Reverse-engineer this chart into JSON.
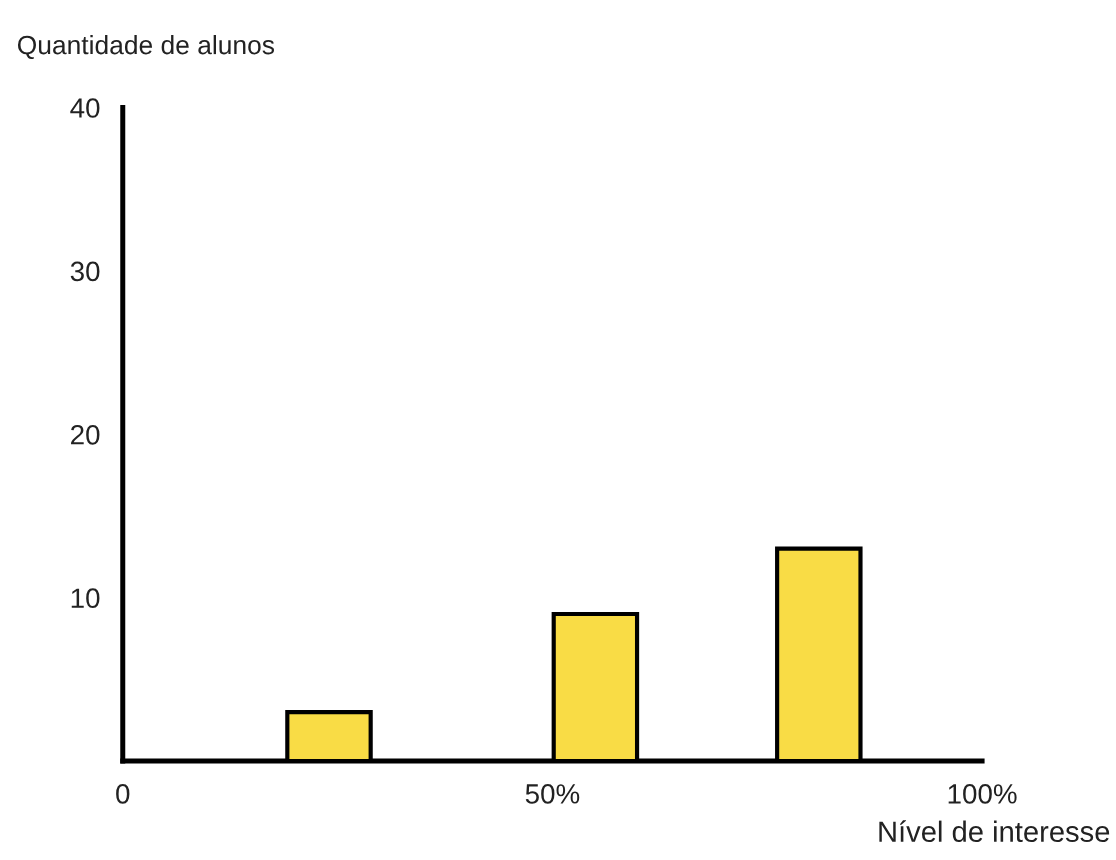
{
  "chart_data": {
    "type": "bar",
    "ylabel": "Quantidade de alunos",
    "xlabel": "Nível de interesse",
    "x": [
      24,
      55,
      81
    ],
    "values": [
      3,
      9,
      13
    ],
    "color": "#f9dc45",
    "xlim": [
      0,
      100
    ],
    "xticks": [
      {
        "value": 0,
        "label": "0"
      },
      {
        "value": 50,
        "label": "50%"
      },
      {
        "value": 100,
        "label": "100%"
      }
    ],
    "ylim": [
      0,
      40
    ],
    "yticks": [
      10,
      20,
      30,
      40
    ],
    "grid": false
  }
}
